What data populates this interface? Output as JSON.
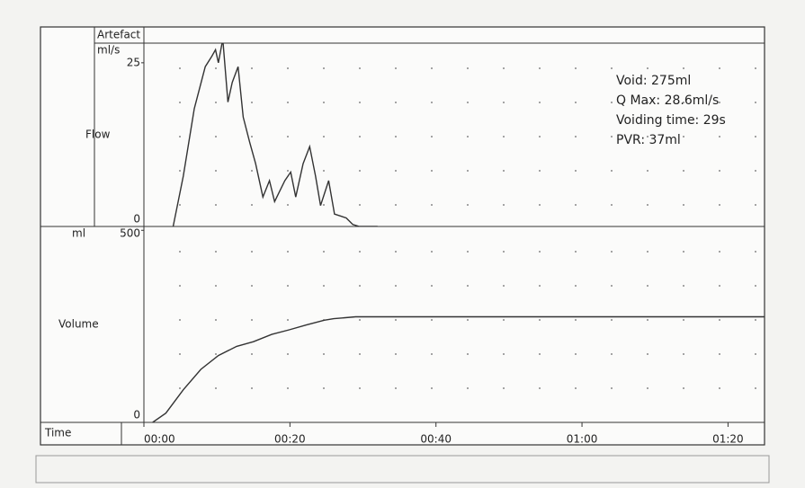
{
  "artefact_label": "Artefact",
  "xlabel": "Time",
  "annotations": [
    "Void: 275ml",
    "Q Max: 28.6ml/s",
    "Voiding time: 29s",
    "PVR: 37ml"
  ],
  "chart_data": [
    {
      "type": "line",
      "ylabel": "Flow",
      "unit": "ml/s",
      "color": "#333333",
      "xlim": [
        0,
        85
      ],
      "ylim": [
        0,
        28
      ],
      "yticks": [
        0,
        25
      ],
      "x": [
        4,
        5.4,
        6.9,
        8.4,
        9.3,
        9.8,
        10.2,
        10.8,
        11.5,
        12.1,
        12.9,
        13.6,
        14.5,
        15.3,
        16.3,
        17.2,
        17.9,
        19.3,
        20.1,
        20.8,
        21.8,
        22.7,
        23.5,
        24.2,
        25.3,
        26.1,
        27.7,
        28.6,
        29.5,
        32
      ],
      "values": [
        0,
        7.7,
        18,
        24.4,
        26,
        27,
        25,
        28.6,
        19,
        22,
        24.4,
        16.7,
        12.8,
        9.6,
        4.5,
        7,
        3.8,
        7,
        8.3,
        4.5,
        9.6,
        12.2,
        7.7,
        3.2,
        7,
        1.9,
        1.3,
        0.3,
        0,
        0
      ]
    },
    {
      "type": "line",
      "ylabel": "Volume",
      "unit": "ml",
      "color": "#333333",
      "xlim": [
        0,
        85
      ],
      "ylim": [
        0,
        510
      ],
      "yticks": [
        0,
        500
      ],
      "xticks": [
        {
          "value": 0,
          "label": "00:00"
        },
        {
          "value": 20,
          "label": "00:20"
        },
        {
          "value": 40,
          "label": "00:40"
        },
        {
          "value": 60,
          "label": "01:00"
        },
        {
          "value": 80,
          "label": "01:20"
        }
      ],
      "x": [
        1.2,
        3,
        5.4,
        7.8,
        10.2,
        12.7,
        15,
        17.5,
        19.9,
        22.3,
        24.7,
        26,
        29,
        85
      ],
      "values": [
        0,
        24,
        85,
        138,
        174,
        198,
        210,
        229,
        241,
        254,
        266,
        270,
        275,
        275
      ]
    }
  ]
}
